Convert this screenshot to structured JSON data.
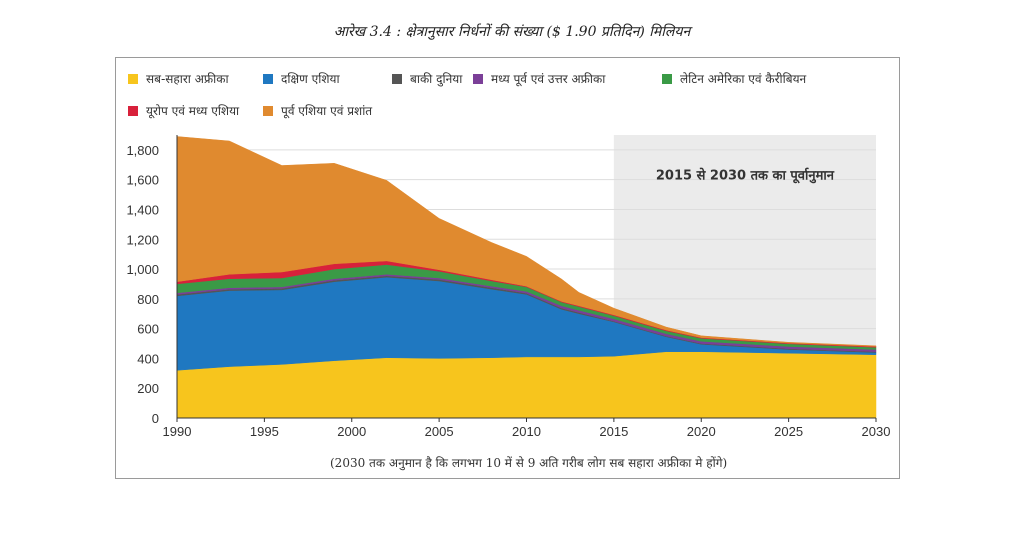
{
  "figure": {
    "title": "आरेख 3.4 : क्षेत्रानुसार निर्धनों की संख्या ($ 1.90 प्रतिदिन) मिलियन",
    "footnote": "(2030 तक अनुमान है कि लगभग 10 में से 9 अति गरीब लोग सब सहारा अफ्रीका मे होंगे)"
  },
  "chart_data": {
    "type": "area",
    "stacked": true,
    "title": "आरेख 3.4 : क्षेत्रानुसार निर्धनों की संख्या ($ 1.90 प्रतिदिन) मिलियन",
    "xlabel": "",
    "ylabel": "",
    "x": [
      1990,
      1993,
      1996,
      1999,
      2002,
      2005,
      2008,
      2010,
      2012,
      2013,
      2015,
      2018,
      2020,
      2025,
      2030
    ],
    "xticks": [
      "1990",
      "1995",
      "2000",
      "2005",
      "2010",
      "2015",
      "2020",
      "2025",
      "2030"
    ],
    "yticks": [
      "0",
      "200",
      "400",
      "600",
      "800",
      "1,000",
      "1,200",
      "1,400",
      "1,600",
      "1,800"
    ],
    "xlim": [
      1990,
      2030
    ],
    "ylim": [
      0,
      1900
    ],
    "legend_position": "top",
    "annotation": "2015 से 2030 तक का पूर्वानुमान",
    "forecast_range": [
      2015,
      2030
    ],
    "series": [
      {
        "name": "सब-सहारा अफ्रीका",
        "color": "#f7c51d",
        "values": [
          320,
          345,
          360,
          385,
          405,
          400,
          405,
          410,
          410,
          410,
          415,
          445,
          445,
          435,
          425
        ]
      },
      {
        "name": "दक्षिण एशिया",
        "color": "#1f78c1",
        "values": [
          500,
          510,
          500,
          530,
          540,
          520,
          460,
          420,
          320,
          290,
          230,
          100,
          50,
          25,
          15
        ]
      },
      {
        "name": "बाकी दुनिया",
        "color": "#555555",
        "values": [
          10,
          10,
          10,
          10,
          10,
          10,
          10,
          8,
          8,
          8,
          5,
          5,
          5,
          5,
          5
        ]
      },
      {
        "name": "मध्य पूर्व एवं उत्तर अफ्रीका",
        "color": "#7b3f98",
        "values": [
          10,
          10,
          10,
          10,
          10,
          10,
          10,
          12,
          15,
          15,
          15,
          15,
          15,
          15,
          15
        ]
      },
      {
        "name": "लेटिन अमेरिका एवं कैरीबियन",
        "color": "#3a9a46",
        "values": [
          60,
          60,
          60,
          65,
          65,
          45,
          35,
          30,
          25,
          25,
          22,
          20,
          20,
          18,
          15
        ]
      },
      {
        "name": "यूरोप एवं मध्य एशिया",
        "color": "#d8213b",
        "values": [
          15,
          30,
          40,
          35,
          25,
          10,
          8,
          5,
          5,
          5,
          5,
          5,
          5,
          5,
          5
        ]
      },
      {
        "name": "पूर्व एशिया एवं प्रशांत",
        "color": "#e08a2f",
        "values": [
          975,
          895,
          715,
          675,
          540,
          345,
          250,
          200,
          150,
          90,
          45,
          20,
          12,
          5,
          5
        ]
      }
    ],
    "colors": {
      "forecast_band": "#ebebeb",
      "grid": "#dddddd",
      "axis": "#333333"
    }
  }
}
